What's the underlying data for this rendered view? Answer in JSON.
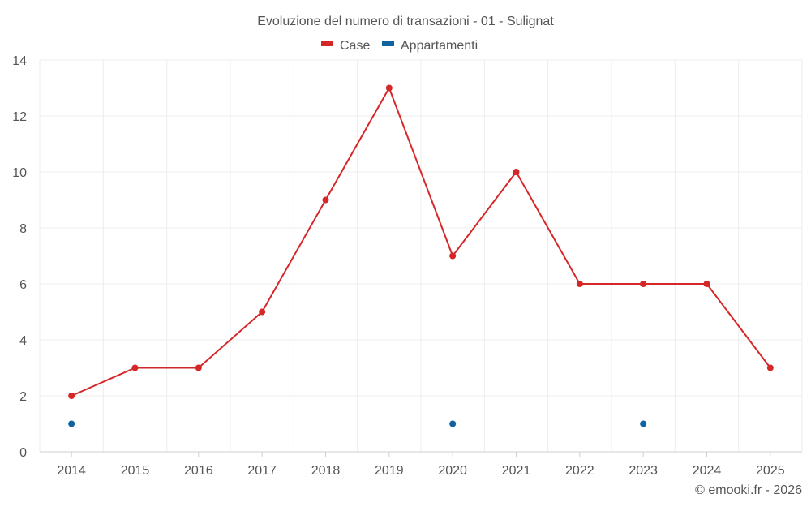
{
  "chart_data": {
    "type": "line",
    "title": "Evoluzione del numero di transazioni - 01 - Sulignat",
    "xlabel": "",
    "ylabel": "",
    "categories": [
      "2014",
      "2015",
      "2016",
      "2017",
      "2018",
      "2019",
      "2020",
      "2021",
      "2022",
      "2023",
      "2024",
      "2025"
    ],
    "ylim": [
      0,
      14
    ],
    "yticks": [
      0,
      2,
      4,
      6,
      8,
      10,
      12,
      14
    ],
    "grid": true,
    "legend_position": "top-center",
    "series": [
      {
        "name": "Case",
        "color": "#d62728",
        "style": "line-with-markers",
        "values": [
          2,
          3,
          3,
          5,
          9,
          13,
          7,
          10,
          6,
          6,
          6,
          3
        ]
      },
      {
        "name": "Appartamenti",
        "color": "#0f63a0",
        "style": "markers-only",
        "values": [
          1,
          null,
          null,
          null,
          null,
          null,
          1,
          null,
          null,
          1,
          null,
          null
        ]
      }
    ],
    "credit": "© emooki.fr - 2026"
  }
}
